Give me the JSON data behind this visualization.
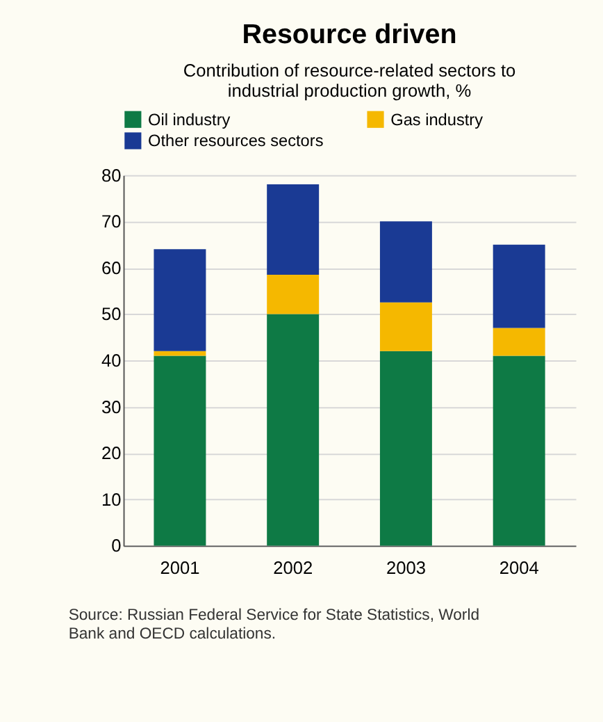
{
  "chart_data": {
    "type": "bar",
    "title": "Resource driven",
    "subtitle": "Contribution of resource-related sectors to industrial production growth, %",
    "categories": [
      "2001",
      "2002",
      "2003",
      "2004"
    ],
    "stacked": true,
    "series": [
      {
        "name": "Oil industry",
        "color": "#0e7a45",
        "values": [
          41,
          50,
          42,
          41
        ]
      },
      {
        "name": "Gas industry",
        "color": "#f5b800",
        "values": [
          1,
          8.5,
          10.5,
          6
        ]
      },
      {
        "name": "Other resources sectors",
        "color": "#1a3a94",
        "values": [
          22,
          19.5,
          17.5,
          18
        ]
      }
    ],
    "ylim": [
      0,
      80
    ],
    "yticks": [
      0,
      10,
      20,
      30,
      40,
      50,
      60,
      70,
      80
    ],
    "grid": "y",
    "legend": "top",
    "annotations": [
      "Source: Russian Federal Service for State Statistics, World Bank and OECD calculations."
    ]
  }
}
